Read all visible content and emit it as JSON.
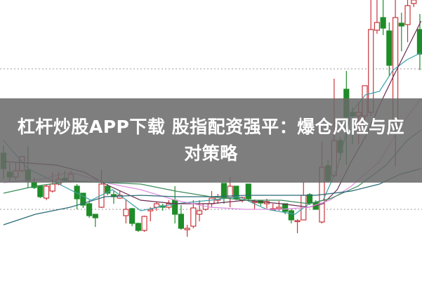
{
  "title": "杠杆炒股APP下载 股指配资强平：爆仓风险与应对策略",
  "chart_data": {
    "type": "candlestick",
    "note_units": "relative price units (no axis printed)",
    "ylim": [
      0,
      400
    ],
    "grid": "dotted horizontal",
    "gridlines": [
      102,
      302
    ],
    "colors": {
      "up": "#c8363c",
      "down": "#1e8c28",
      "background": "#ffffff",
      "banner": "#696969"
    },
    "candles": [
      [
        182,
        192,
        145,
        160
      ],
      [
        155,
        168,
        142,
        148
      ],
      [
        148,
        168,
        144,
        157
      ],
      [
        157,
        178,
        155,
        177
      ],
      [
        158,
        192,
        132,
        142
      ],
      [
        140,
        147,
        131,
        133
      ],
      [
        135,
        135,
        118,
        120
      ],
      [
        118,
        137,
        115,
        135
      ],
      [
        128,
        155,
        126,
        138
      ],
      [
        138,
        155,
        136,
        145
      ],
      [
        146,
        157,
        142,
        143
      ],
      [
        142,
        157,
        140,
        152
      ],
      [
        135,
        138,
        102,
        117
      ],
      [
        125,
        125,
        104,
        108
      ],
      [
        110,
        115,
        90,
        93
      ],
      [
        95,
        95,
        77,
        90
      ],
      [
        105,
        158,
        104,
        138
      ],
      [
        135,
        138,
        122,
        125
      ],
      [
        123,
        128,
        110,
        120
      ],
      [
        118,
        128,
        117,
        122
      ],
      [
        93,
        115,
        82,
        102
      ],
      [
        103,
        104,
        78,
        82
      ],
      [
        82,
        83,
        70,
        72
      ],
      [
        72,
        93,
        70,
        92
      ],
      [
        100,
        105,
        85,
        102
      ],
      [
        105,
        113,
        100,
        110
      ],
      [
        107,
        110,
        100,
        105
      ],
      [
        105,
        115,
        103,
        110
      ],
      [
        115,
        135,
        82,
        95
      ],
      [
        95,
        108,
        73,
        75
      ],
      [
        73,
        80,
        63,
        75
      ],
      [
        78,
        115,
        75,
        104
      ],
      [
        95,
        115,
        85,
        100
      ],
      [
        102,
        110,
        100,
        110
      ],
      [
        110,
        128,
        105,
        118
      ],
      [
        115,
        124,
        110,
        119
      ],
      [
        139,
        139,
        110,
        119
      ],
      [
        119,
        148,
        105,
        135
      ],
      [
        135,
        135,
        115,
        117
      ],
      [
        115,
        120,
        112,
        119
      ],
      [
        138,
        138,
        115,
        117
      ],
      [
        112,
        116,
        102,
        113
      ],
      [
        114,
        115,
        107,
        111
      ],
      [
        110,
        117,
        103,
        113
      ],
      [
        101,
        110,
        100,
        103
      ],
      [
        103,
        114,
        100,
        105
      ],
      [
        110,
        110,
        95,
        99
      ],
      [
        100,
        102,
        82,
        87
      ],
      [
        85,
        88,
        68,
        86
      ],
      [
        87,
        141,
        87,
        122
      ],
      [
        123,
        125,
        108,
        111
      ],
      [
        112,
        115,
        102,
        102
      ],
      [
        84,
        198,
        82,
        162
      ],
      [
        164,
        173,
        140,
        143
      ],
      [
        150,
        288,
        148,
        200
      ],
      [
        200,
        205,
        172,
        183
      ],
      [
        273,
        299,
        165,
        233
      ],
      [
        240,
        247,
        195,
        235
      ],
      [
        235,
        255,
        195,
        240
      ],
      [
        235,
        278,
        228,
        278
      ],
      [
        240,
        400,
        235,
        358
      ],
      [
        357,
        400,
        352,
        368
      ],
      [
        375,
        400,
        350,
        360
      ],
      [
        356,
        368,
        292,
        307
      ],
      [
        220,
        400,
        163,
        375
      ],
      [
        367,
        382,
        327,
        363
      ],
      [
        365,
        400,
        340,
        392
      ],
      [
        395,
        400,
        390,
        400
      ],
      [
        358,
        380,
        300,
        323
      ]
    ],
    "candle_fields": [
      "open",
      "high",
      "low",
      "close"
    ],
    "moving_averages": [
      {
        "color": "#3aa0a8",
        "points": [
          [
            0,
            200
          ],
          [
            4,
            160
          ],
          [
            8.6,
            140
          ],
          [
            14.3,
            115
          ],
          [
            17.8,
            130
          ],
          [
            22.4,
            100
          ],
          [
            28.1,
            110
          ],
          [
            33.8,
            115
          ],
          [
            38.4,
            120
          ],
          [
            43,
            102
          ],
          [
            47.6,
            95
          ],
          [
            49.9,
            110
          ],
          [
            52.2,
            115
          ],
          [
            54.5,
            160
          ],
          [
            56.8,
            240
          ],
          [
            59.1,
            265
          ],
          [
            61.4,
            270
          ],
          [
            63.6,
            300
          ],
          [
            65.9,
            315
          ],
          [
            68.2,
            325
          ]
        ]
      },
      {
        "color": "#6a2a50",
        "points": [
          [
            0,
            170
          ],
          [
            4,
            168
          ],
          [
            8.6,
            165
          ],
          [
            13.2,
            155
          ],
          [
            16.6,
            138
          ],
          [
            22.4,
            115
          ],
          [
            28.1,
            110
          ],
          [
            33.8,
            110
          ],
          [
            39.6,
            115
          ],
          [
            45.3,
            110
          ],
          [
            49.9,
            105
          ],
          [
            52.2,
            110
          ],
          [
            54.5,
            130
          ],
          [
            56.8,
            170
          ],
          [
            59.1,
            205
          ],
          [
            61.4,
            250
          ],
          [
            63.6,
            290
          ],
          [
            65.9,
            330
          ],
          [
            68.2,
            370
          ]
        ]
      },
      {
        "color": "#e090e0",
        "points": [
          [
            0,
            140
          ],
          [
            6.3,
            145
          ],
          [
            10.9,
            155
          ],
          [
            16.6,
            140
          ],
          [
            22.4,
            130
          ],
          [
            28.1,
            115
          ],
          [
            33.8,
            105
          ],
          [
            39.6,
            102
          ],
          [
            45.3,
            102
          ],
          [
            49.9,
            105
          ],
          [
            53.3,
            115
          ],
          [
            56.8,
            135
          ],
          [
            61.4,
            170
          ],
          [
            64.8,
            220
          ],
          [
            68.2,
            260
          ]
        ]
      },
      {
        "color": "#3d8a5a",
        "points": [
          [
            0,
            125
          ],
          [
            5.2,
            135
          ],
          [
            10.9,
            142
          ],
          [
            16.6,
            140
          ],
          [
            22.4,
            138
          ],
          [
            28.1,
            128
          ],
          [
            33.8,
            120
          ],
          [
            39.6,
            115
          ],
          [
            45.3,
            115
          ],
          [
            49.9,
            110
          ],
          [
            53.3,
            117
          ],
          [
            57.9,
            135
          ],
          [
            62.5,
            165
          ],
          [
            65.9,
            200
          ],
          [
            68.2,
            215
          ]
        ]
      },
      {
        "color": "#2a6a78",
        "points": [
          [
            0,
            80
          ],
          [
            5.2,
            95
          ],
          [
            10.9,
            105
          ],
          [
            16.6,
            120
          ],
          [
            22.4,
            122
          ],
          [
            28.1,
            120
          ],
          [
            33.8,
            120
          ],
          [
            39.6,
            122
          ],
          [
            45.3,
            122
          ],
          [
            51,
            122
          ],
          [
            56.8,
            128
          ],
          [
            61.4,
            138
          ],
          [
            64.8,
            152
          ],
          [
            68.2,
            160
          ]
        ]
      }
    ]
  }
}
